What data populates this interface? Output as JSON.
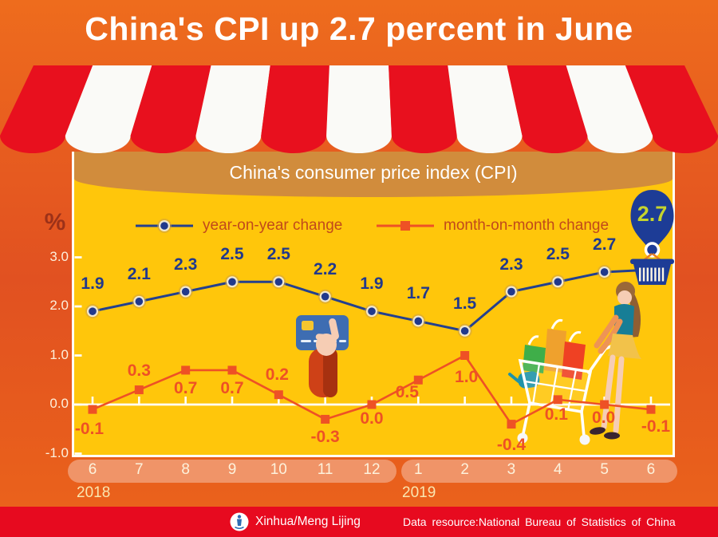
{
  "page": {
    "title": "China's CPI up 2.7 percent in June"
  },
  "chart": {
    "title": "China's consumer price index (CPI)",
    "unit_label": "%"
  },
  "chart_data": {
    "type": "line",
    "title": "China's consumer price index (CPI)",
    "ylabel": "%",
    "ylim": [
      -1.0,
      3.5
    ],
    "grid": "zero-line-only",
    "legend_position": "top",
    "categories": [
      "6",
      "7",
      "8",
      "9",
      "10",
      "11",
      "12",
      "1",
      "2",
      "3",
      "4",
      "5",
      "6"
    ],
    "x_axis_years": [
      {
        "label": "2018",
        "months": [
          "6",
          "7",
          "8",
          "9",
          "10",
          "11",
          "12"
        ]
      },
      {
        "label": "2019",
        "months": [
          "1",
          "2",
          "3",
          "4",
          "5",
          "6"
        ]
      }
    ],
    "yticks": [
      "3.0",
      "2.0",
      "1.0",
      "0.0",
      "-1.0"
    ],
    "series": [
      {
        "name": "year-on-year change",
        "color": "#24408E",
        "marker": "circle",
        "values": [
          1.9,
          2.1,
          2.3,
          2.5,
          2.5,
          2.2,
          1.9,
          1.7,
          1.5,
          2.3,
          2.5,
          2.7,
          2.7
        ]
      },
      {
        "name": "month-on-month change",
        "color": "#EE5125",
        "marker": "square",
        "values": [
          -0.1,
          0.3,
          0.7,
          0.7,
          0.2,
          -0.3,
          0.0,
          0.5,
          1.0,
          -0.4,
          0.1,
          0.0,
          -0.1
        ]
      }
    ],
    "highlight": {
      "value": "2.7",
      "month": "6",
      "year": "2019"
    }
  },
  "footer": {
    "credit": "Xinhua/Meng Lijing",
    "source": "Data resource:National Bureau of Statistics of China"
  },
  "colors": {
    "background_orange": "#E85E1F",
    "panel_yellow": "#FFC60B",
    "awning_red": "#E8101E",
    "band_tan": "#D18C3C",
    "yoy_navy": "#24408E",
    "mom_orange": "#EE5125",
    "footer_red": "#E70A1F",
    "balloon_navy": "#1D3C96",
    "balloon_text": "#C6D42D",
    "pill_salmon": "#F09468"
  }
}
